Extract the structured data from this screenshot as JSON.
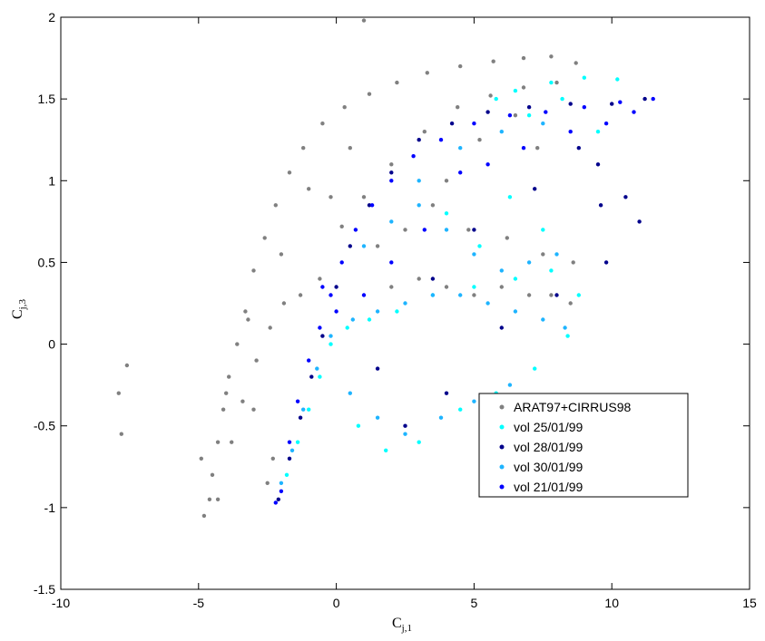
{
  "chart_data": {
    "type": "scatter",
    "title": "",
    "xlabel": {
      "main": "C",
      "sub": "j,1"
    },
    "ylabel": {
      "main": "C",
      "sub": "j,3"
    },
    "xlim": [
      -10,
      15
    ],
    "ylim": [
      -1.5,
      2
    ],
    "xticks": [
      "-10",
      "-5",
      "0",
      "5",
      "10",
      "15"
    ],
    "yticks": [
      "-1.5",
      "-1",
      "-0.5",
      "0",
      "0.5",
      "1",
      "1.5",
      "2"
    ],
    "grid": false,
    "legend_position": "lower-right",
    "series": [
      {
        "name": "ARAT97+CIRRUS98",
        "color": "#808080",
        "points": [
          [
            -4.8,
            -1.05
          ],
          [
            -4.6,
            -0.95
          ],
          [
            -4.5,
            -0.8
          ],
          [
            -4.3,
            -0.6
          ],
          [
            -4.1,
            -0.4
          ],
          [
            -3.9,
            -0.2
          ],
          [
            -3.6,
            0.0
          ],
          [
            -3.3,
            0.2
          ],
          [
            -3.0,
            0.45
          ],
          [
            -2.6,
            0.65
          ],
          [
            -2.2,
            0.85
          ],
          [
            -1.7,
            1.05
          ],
          [
            -1.2,
            1.2
          ],
          [
            -0.5,
            1.35
          ],
          [
            0.3,
            1.45
          ],
          [
            1.2,
            1.53
          ],
          [
            2.2,
            1.6
          ],
          [
            3.3,
            1.66
          ],
          [
            4.5,
            1.7
          ],
          [
            5.7,
            1.73
          ],
          [
            6.8,
            1.75
          ],
          [
            7.8,
            1.76
          ],
          [
            8.7,
            1.72
          ],
          [
            -3.8,
            -0.6
          ],
          [
            -3.4,
            -0.35
          ],
          [
            -2.9,
            -0.1
          ],
          [
            -2.4,
            0.1
          ],
          [
            -1.9,
            0.25
          ],
          [
            -1.3,
            0.3
          ],
          [
            -0.6,
            0.4
          ],
          [
            0.2,
            0.72
          ],
          [
            1.0,
            0.9
          ],
          [
            2.0,
            1.1
          ],
          [
            3.2,
            1.3
          ],
          [
            4.4,
            1.45
          ],
          [
            5.6,
            1.52
          ],
          [
            6.8,
            1.57
          ],
          [
            8.0,
            1.6
          ],
          [
            2.0,
            0.35
          ],
          [
            3.0,
            0.4
          ],
          [
            4.0,
            0.35
          ],
          [
            5.0,
            0.3
          ],
          [
            6.0,
            0.35
          ],
          [
            7.0,
            0.3
          ],
          [
            7.8,
            0.3
          ],
          [
            8.5,
            0.25
          ],
          [
            3.5,
            0.85
          ],
          [
            4.8,
            0.7
          ],
          [
            6.2,
            0.65
          ],
          [
            7.5,
            0.55
          ],
          [
            8.6,
            0.5
          ],
          [
            -2.5,
            -0.85
          ],
          [
            -2.3,
            -0.7
          ],
          [
            -4.3,
            -0.95
          ],
          [
            -3.0,
            -0.4
          ],
          [
            -4.9,
            -0.7
          ],
          [
            -7.9,
            -0.3
          ],
          [
            -7.6,
            -0.13
          ],
          [
            -7.8,
            -0.55
          ],
          [
            1.0,
            1.98
          ],
          [
            -1.0,
            0.95
          ],
          [
            0.5,
            1.2
          ],
          [
            -2.0,
            0.55
          ],
          [
            -3.2,
            0.15
          ],
          [
            -4.0,
            -0.3
          ],
          [
            1.5,
            0.6
          ],
          [
            2.5,
            0.7
          ],
          [
            5.2,
            1.25
          ],
          [
            6.5,
            1.4
          ],
          [
            7.3,
            1.2
          ],
          [
            4.0,
            1.0
          ],
          [
            -0.2,
            0.9
          ]
        ]
      },
      {
        "name": "vol 25/01/99",
        "color": "#00FFFF",
        "points": [
          [
            -1.8,
            -0.8
          ],
          [
            -1.4,
            -0.6
          ],
          [
            -1.0,
            -0.4
          ],
          [
            -0.6,
            -0.2
          ],
          [
            -0.2,
            0.0
          ],
          [
            0.4,
            0.1
          ],
          [
            1.2,
            0.15
          ],
          [
            2.2,
            0.2
          ],
          [
            3.5,
            0.3
          ],
          [
            5.0,
            0.35
          ],
          [
            6.5,
            0.4
          ],
          [
            7.8,
            0.45
          ],
          [
            8.8,
            0.3
          ],
          [
            8.4,
            0.05
          ],
          [
            7.2,
            -0.15
          ],
          [
            5.8,
            -0.3
          ],
          [
            4.5,
            -0.4
          ],
          [
            3.0,
            -0.6
          ],
          [
            1.8,
            -0.65
          ],
          [
            0.8,
            -0.5
          ],
          [
            6.5,
            1.55
          ],
          [
            7.8,
            1.6
          ],
          [
            9.0,
            1.63
          ],
          [
            10.2,
            1.62
          ],
          [
            5.8,
            1.5
          ],
          [
            7.0,
            1.4
          ],
          [
            8.2,
            1.5
          ],
          [
            9.5,
            1.3
          ],
          [
            4.0,
            0.8
          ],
          [
            5.2,
            0.6
          ],
          [
            6.3,
            0.9
          ],
          [
            7.5,
            0.7
          ]
        ]
      },
      {
        "name": "vol 28/01/99",
        "color": "#00008B",
        "points": [
          [
            -2.1,
            -0.95
          ],
          [
            -1.7,
            -0.7
          ],
          [
            -1.3,
            -0.45
          ],
          [
            -0.9,
            -0.2
          ],
          [
            -0.5,
            0.05
          ],
          [
            0.0,
            0.35
          ],
          [
            0.5,
            0.6
          ],
          [
            1.2,
            0.85
          ],
          [
            2.0,
            1.05
          ],
          [
            3.0,
            1.25
          ],
          [
            4.2,
            1.35
          ],
          [
            5.5,
            1.42
          ],
          [
            7.0,
            1.45
          ],
          [
            8.5,
            1.47
          ],
          [
            10.0,
            1.47
          ],
          [
            11.2,
            1.5
          ],
          [
            9.5,
            1.1
          ],
          [
            10.5,
            0.9
          ],
          [
            11.0,
            0.75
          ],
          [
            9.8,
            0.5
          ],
          [
            8.0,
            0.3
          ],
          [
            6.0,
            0.1
          ],
          [
            4.0,
            -0.3
          ],
          [
            2.5,
            -0.5
          ],
          [
            1.5,
            -0.15
          ],
          [
            3.5,
            0.4
          ],
          [
            5.0,
            0.7
          ],
          [
            7.2,
            0.95
          ],
          [
            8.8,
            1.2
          ],
          [
            9.6,
            0.85
          ]
        ]
      },
      {
        "name": "vol 30/01/99",
        "color": "#1EB4FF",
        "points": [
          [
            -2.0,
            -0.85
          ],
          [
            -1.6,
            -0.65
          ],
          [
            -1.2,
            -0.4
          ],
          [
            -0.7,
            -0.15
          ],
          [
            -0.2,
            0.05
          ],
          [
            0.6,
            0.15
          ],
          [
            1.5,
            0.2
          ],
          [
            2.5,
            0.25
          ],
          [
            3.5,
            0.3
          ],
          [
            4.5,
            0.3
          ],
          [
            5.5,
            0.25
          ],
          [
            6.5,
            0.2
          ],
          [
            7.5,
            0.15
          ],
          [
            8.3,
            0.1
          ],
          [
            1.0,
            0.6
          ],
          [
            2.0,
            0.75
          ],
          [
            3.0,
            0.85
          ],
          [
            4.0,
            0.7
          ],
          [
            5.0,
            0.55
          ],
          [
            6.0,
            0.45
          ],
          [
            7.0,
            0.5
          ],
          [
            8.0,
            0.55
          ],
          [
            0.5,
            -0.3
          ],
          [
            1.5,
            -0.45
          ],
          [
            2.5,
            -0.55
          ],
          [
            3.8,
            -0.45
          ],
          [
            5.0,
            -0.35
          ],
          [
            6.3,
            -0.25
          ],
          [
            3.0,
            1.0
          ],
          [
            4.5,
            1.2
          ],
          [
            6.0,
            1.3
          ],
          [
            7.5,
            1.35
          ]
        ]
      },
      {
        "name": "vol 21/01/99",
        "color": "#0000FF",
        "points": [
          [
            -2.2,
            -0.97
          ],
          [
            -2.0,
            -0.9
          ],
          [
            -1.7,
            -0.6
          ],
          [
            -1.4,
            -0.35
          ],
          [
            -1.0,
            -0.1
          ],
          [
            -0.6,
            0.1
          ],
          [
            -0.2,
            0.3
          ],
          [
            0.2,
            0.5
          ],
          [
            0.7,
            0.7
          ],
          [
            1.3,
            0.85
          ],
          [
            2.0,
            1.0
          ],
          [
            2.8,
            1.15
          ],
          [
            3.8,
            1.25
          ],
          [
            5.0,
            1.35
          ],
          [
            6.3,
            1.4
          ],
          [
            7.6,
            1.42
          ],
          [
            9.0,
            1.45
          ],
          [
            10.3,
            1.48
          ],
          [
            11.5,
            1.5
          ],
          [
            8.5,
            1.3
          ],
          [
            9.8,
            1.35
          ],
          [
            10.8,
            1.42
          ],
          [
            4.5,
            1.05
          ],
          [
            5.5,
            1.1
          ],
          [
            6.8,
            1.2
          ],
          [
            1.0,
            0.3
          ],
          [
            2.0,
            0.5
          ],
          [
            3.2,
            0.7
          ],
          [
            -0.5,
            0.35
          ],
          [
            0.0,
            0.2
          ]
        ]
      }
    ]
  }
}
